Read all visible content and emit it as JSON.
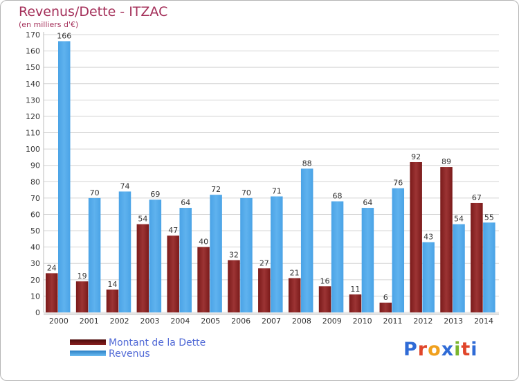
{
  "title": "Revenus/Dette - ITZAC",
  "unit_label": "(en milliers d'€)",
  "legend": {
    "debt": "Montant de la Dette",
    "revenue": "Revenus"
  },
  "logo": {
    "text": "Proxiti",
    "letter_colors": [
      "#2f6bd6",
      "#e0452a",
      "#f0a01d",
      "#2f6bd6",
      "#7ab52e",
      "#e0452a",
      "#2f6bd6"
    ]
  },
  "colors": {
    "debt": "#7a1a1a",
    "debt_light": "#9c3434",
    "revenue": "#4aa3e6",
    "revenue_light": "#5fb2ee",
    "axis_text": "#333333",
    "grid": "#d4d4d4"
  },
  "chart_data": {
    "type": "bar",
    "categories": [
      "2000",
      "2001",
      "2002",
      "2003",
      "2004",
      "2005",
      "2006",
      "2007",
      "2008",
      "2009",
      "2010",
      "2011",
      "2012",
      "2013",
      "2014"
    ],
    "series": [
      {
        "name": "Montant de la Dette",
        "values": [
          24,
          19,
          14,
          54,
          47,
          40,
          32,
          27,
          21,
          16,
          11,
          6,
          92,
          89,
          67
        ]
      },
      {
        "name": "Revenus",
        "values": [
          166,
          70,
          74,
          69,
          64,
          72,
          70,
          71,
          88,
          68,
          64,
          76,
          43,
          54,
          55
        ]
      }
    ],
    "ylim": [
      0,
      170
    ],
    "yticks": [
      0,
      10,
      20,
      30,
      40,
      50,
      60,
      70,
      80,
      90,
      100,
      110,
      120,
      130,
      140,
      150,
      160,
      170
    ],
    "grid": true,
    "legend_position": "bottom-left"
  }
}
